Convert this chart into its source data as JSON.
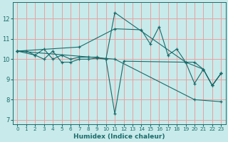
{
  "xlabel": "Humidex (Indice chaleur)",
  "xlim": [
    -0.5,
    23.5
  ],
  "ylim": [
    6.8,
    12.8
  ],
  "yticks": [
    7,
    8,
    9,
    10,
    11,
    12
  ],
  "xticks": [
    0,
    1,
    2,
    3,
    4,
    5,
    6,
    7,
    8,
    9,
    10,
    11,
    12,
    13,
    14,
    15,
    16,
    17,
    18,
    19,
    20,
    21,
    22,
    23
  ],
  "background_color": "#c8eaea",
  "grid_color": "#e8a0a0",
  "line_color": "#1a6b6b",
  "lines": [
    {
      "x": [
        0,
        1,
        2,
        3,
        4,
        5,
        6,
        7,
        8,
        9,
        10,
        11,
        19,
        20,
        21,
        22,
        23
      ],
      "y": [
        10.4,
        10.4,
        10.2,
        10.5,
        10.0,
        10.2,
        10.0,
        10.1,
        10.1,
        10.1,
        10.0,
        12.3,
        9.85,
        9.85,
        9.5,
        8.7,
        9.3
      ]
    },
    {
      "x": [
        0,
        2,
        3,
        4,
        5,
        6,
        7,
        8,
        9,
        10,
        11,
        12,
        19,
        21,
        22,
        23
      ],
      "y": [
        10.4,
        10.2,
        10.0,
        10.4,
        9.85,
        9.85,
        10.0,
        10.0,
        10.05,
        10.0,
        7.3,
        9.9,
        9.85,
        9.5,
        8.7,
        9.3
      ]
    },
    {
      "x": [
        0,
        7,
        11,
        14,
        15,
        16,
        17,
        18,
        19,
        20,
        21,
        22,
        23
      ],
      "y": [
        10.4,
        10.6,
        11.5,
        11.45,
        10.75,
        11.6,
        10.2,
        10.5,
        9.85,
        8.8,
        9.5,
        8.7,
        9.3
      ]
    },
    {
      "x": [
        0,
        11,
        20,
        23
      ],
      "y": [
        10.4,
        10.0,
        8.0,
        7.9
      ]
    }
  ]
}
